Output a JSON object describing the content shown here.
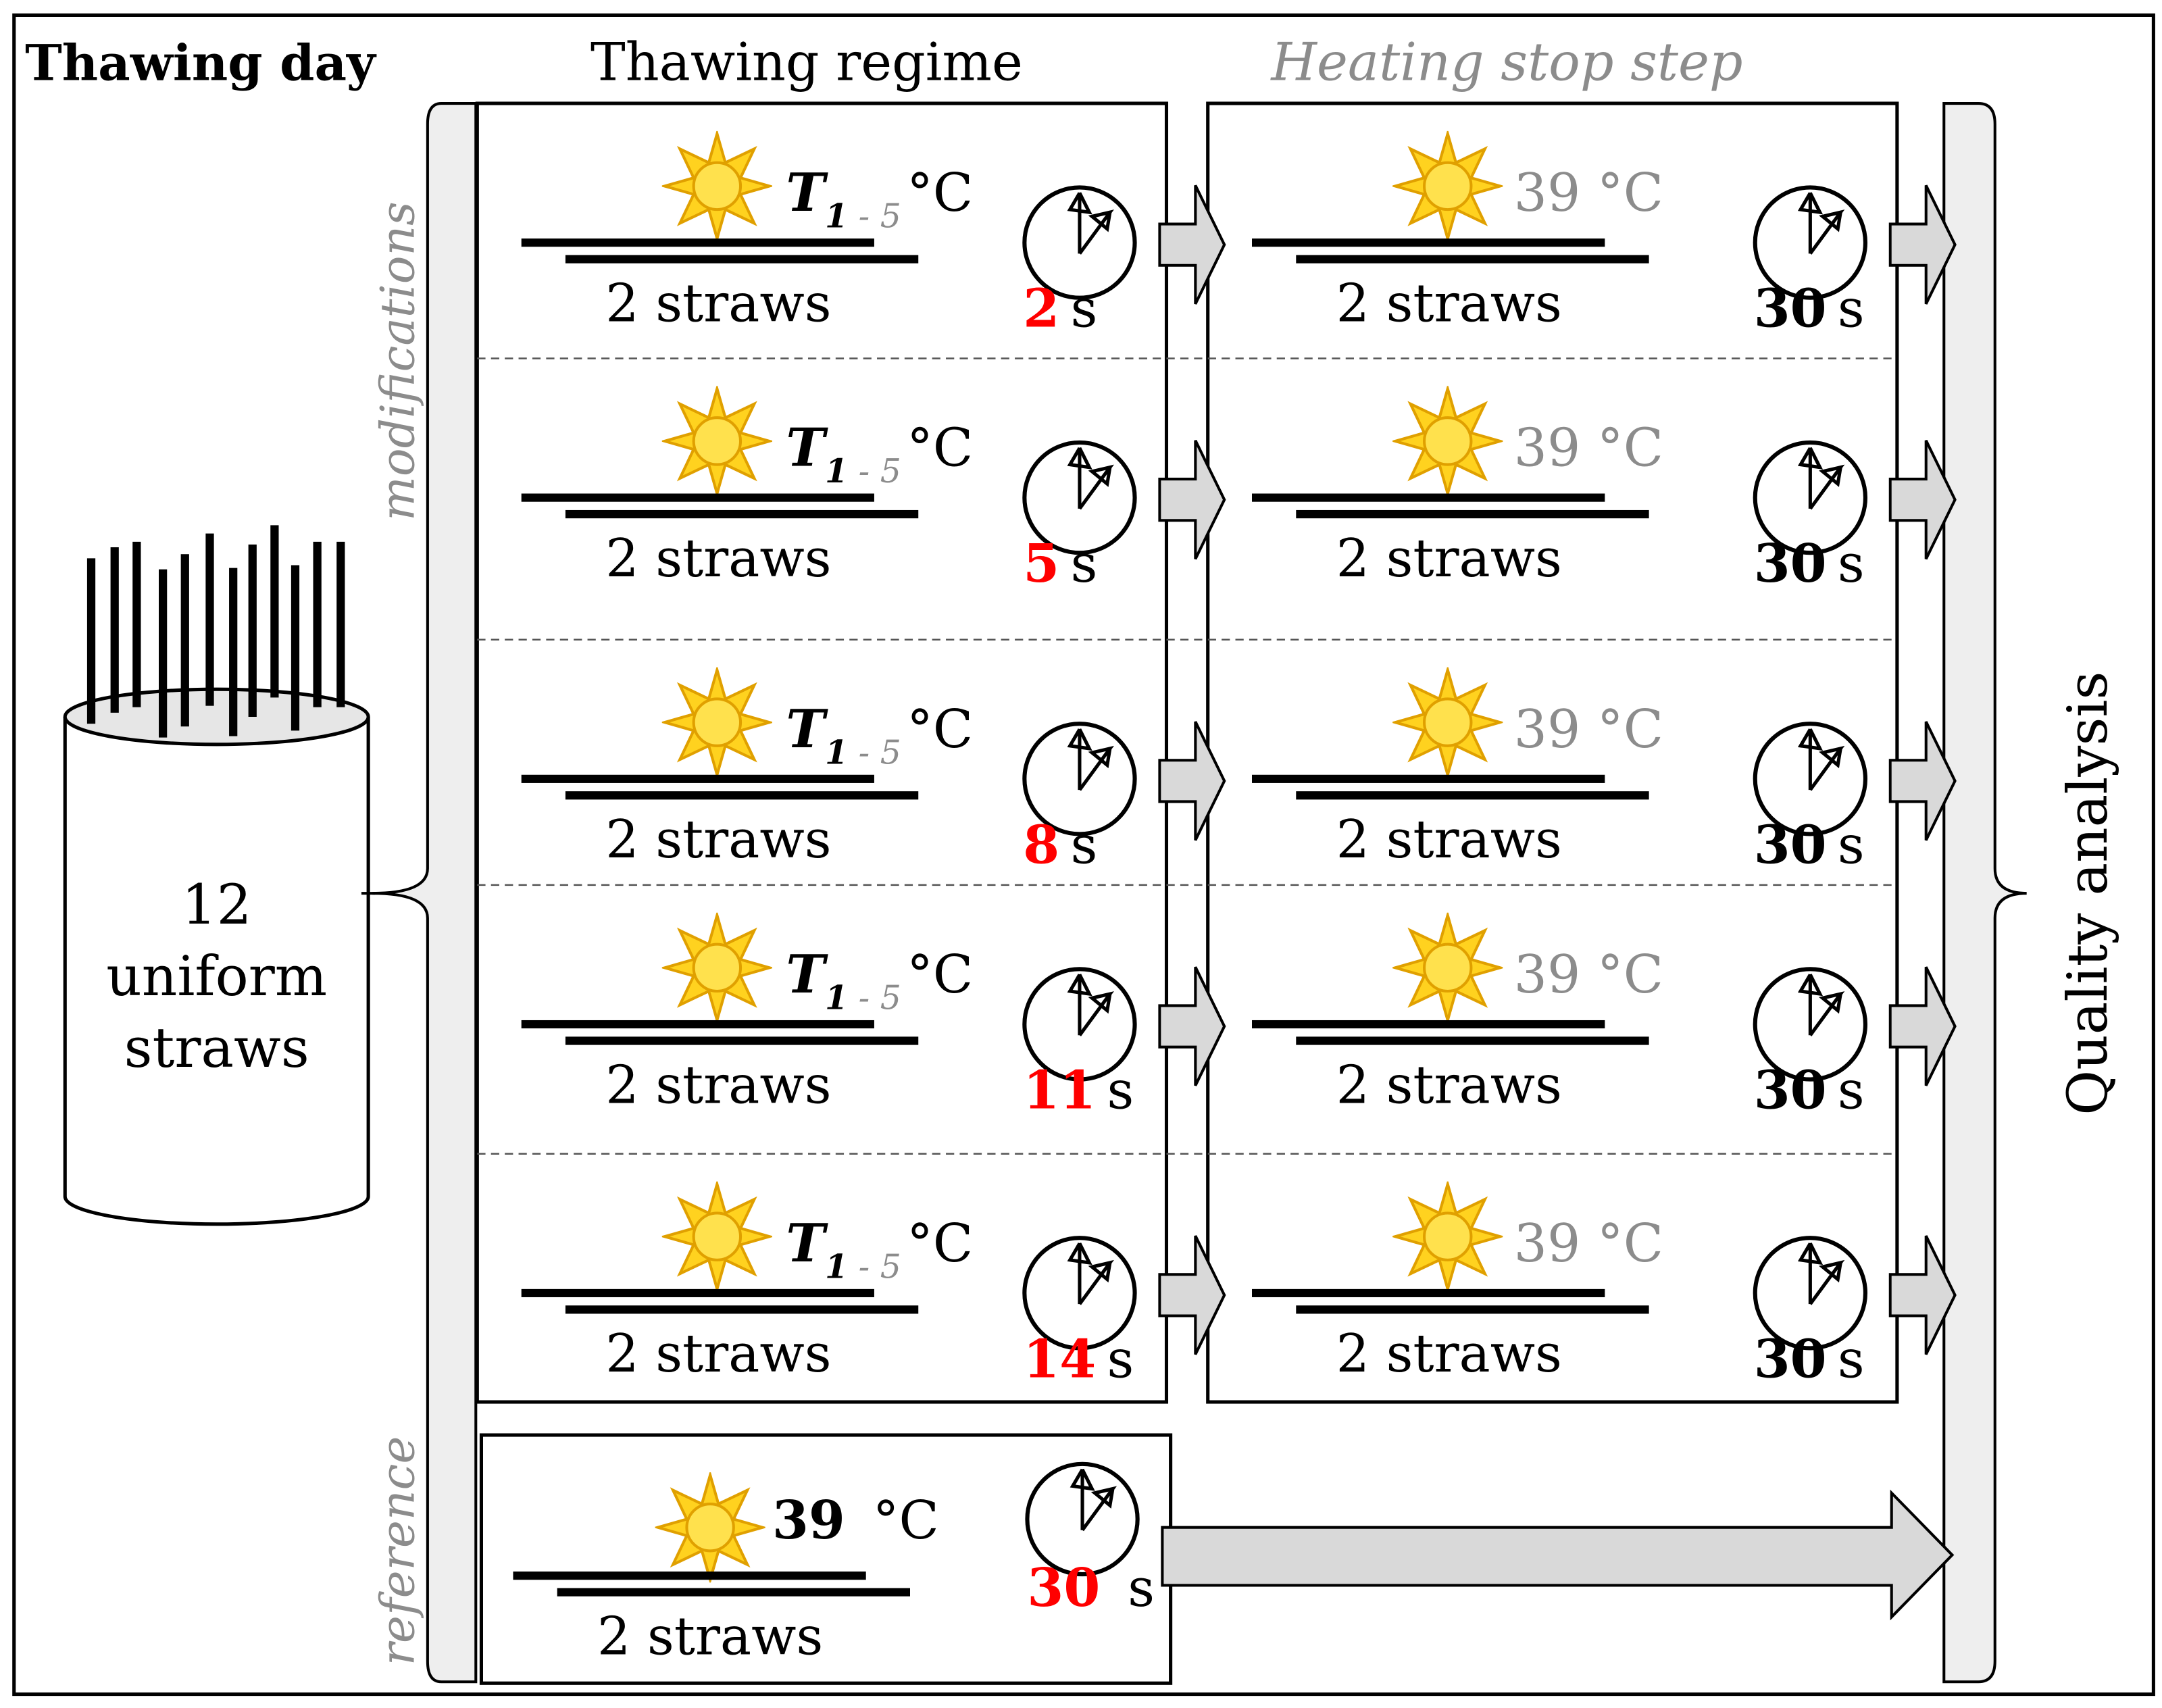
{
  "header": {
    "thawing_day": "Thawing day",
    "thawing_regime": "Thawing regime",
    "heating_stop_step": "Heating stop step"
  },
  "side_labels": {
    "modifications": "modifications",
    "reference": "reference",
    "quality_analysis": "Quality analysis"
  },
  "container": {
    "count": "12",
    "line1": "uniform",
    "line2": "straws"
  },
  "straws_label": "2 straws",
  "temperature": {
    "symbol": "T",
    "subscript_start": "1",
    "subscript_range": " - 5",
    "unit": "°C",
    "stop_value": "39",
    "stop_text": "39 °C"
  },
  "time_unit": "s",
  "regime_rows": [
    {
      "time": "2",
      "stop_time": "30"
    },
    {
      "time": "5",
      "stop_time": "30"
    },
    {
      "time": "8",
      "stop_time": "30"
    },
    {
      "time": "11",
      "stop_time": "30"
    },
    {
      "time": "14",
      "stop_time": "30"
    }
  ],
  "reference_row": {
    "temp": "39",
    "time": "30"
  },
  "colors": {
    "highlight_time": "#ff0000",
    "muted_text": "#8c8c8c",
    "arrow_fill": "#d9d9d9",
    "bracket_fill": "#eeeeee",
    "sun_fill": "#ffd21f",
    "sun_stroke": "#e0a000"
  }
}
